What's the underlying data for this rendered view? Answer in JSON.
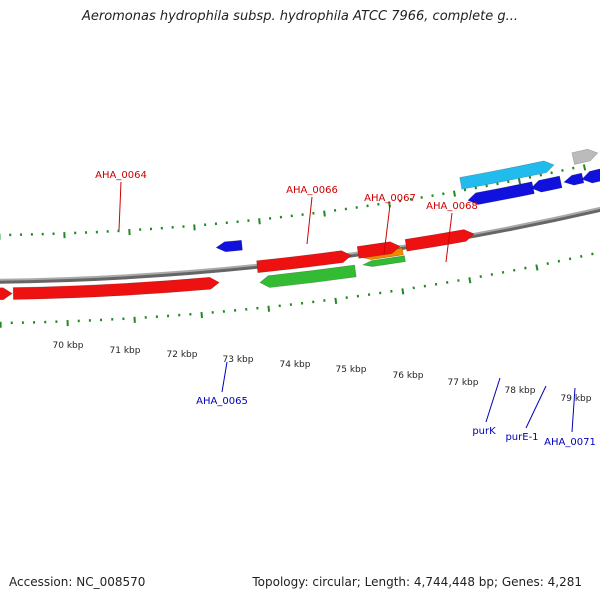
{
  "title": "Aeromonas hydrophila subsp. hydrophila ATCC 7966, complete g...",
  "footer": {
    "accession": "Accession: NC_008570",
    "summary": "Topology: circular; Length: 4,744,448 bp; Genes: 4,281"
  },
  "scale_labels": [
    "70 kbp",
    "71 kbp",
    "72 kbp",
    "73 kbp",
    "74 kbp",
    "75 kbp",
    "76 kbp",
    "77 kbp",
    "78 kbp",
    "79 kbp"
  ],
  "colors": {
    "forward_gene": "#ee1111",
    "reverse_gene": "#1111dd",
    "rna_gene": "#33bb33",
    "orange_gene": "#ee8800",
    "cyan_gene": "#22bbee",
    "grey_gene": "#bbbbbb",
    "backbone": "#888888",
    "ticks": "#228822",
    "forward_label": "#cc0000",
    "reverse_label": "#0000bb"
  },
  "gene_labels": [
    {
      "name": "AHA_0064",
      "strand": "forward"
    },
    {
      "name": "AHA_0066",
      "strand": "forward"
    },
    {
      "name": "AHA_0067",
      "strand": "forward"
    },
    {
      "name": "AHA_0068",
      "strand": "forward"
    },
    {
      "name": "AHA_0065",
      "strand": "reverse"
    },
    {
      "name": "purK",
      "strand": "reverse"
    },
    {
      "name": "purE-1",
      "strand": "reverse"
    },
    {
      "name": "AHA_0071",
      "strand": "reverse"
    }
  ]
}
